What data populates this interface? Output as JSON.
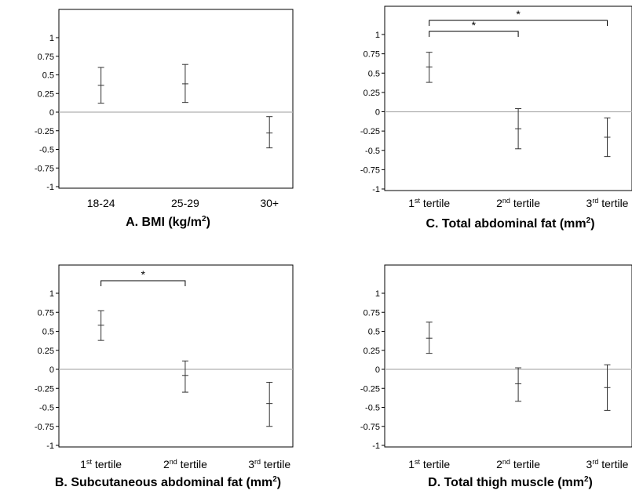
{
  "chart_data": [
    {
      "panel": "A",
      "type": "errorbar",
      "title": "A. BMI (kg/m",
      "title_sup": "2",
      "title_tail": ")",
      "ylim": [
        -1,
        1
      ],
      "yticks": [
        {
          "value": 1,
          "label": "1"
        },
        {
          "value": 0.75,
          "label": "0.75"
        },
        {
          "value": 0.5,
          "label": "0.5"
        },
        {
          "value": 0.25,
          "label": "0.25"
        },
        {
          "value": 0,
          "label": "0"
        },
        {
          "value": -0.25,
          "label": "-0.25"
        },
        {
          "value": -0.5,
          "label": "-0.5"
        },
        {
          "value": -0.75,
          "label": "-0.75"
        },
        {
          "value": -1,
          "label": "-1"
        }
      ],
      "categories": [
        {
          "main": "18-24",
          "sup": "",
          "tail": ""
        },
        {
          "main": "25-29",
          "sup": "",
          "tail": ""
        },
        {
          "main": "30+",
          "sup": "",
          "tail": ""
        }
      ],
      "points": [
        {
          "mean": 0.36,
          "low": 0.12,
          "high": 0.6
        },
        {
          "mean": 0.38,
          "low": 0.13,
          "high": 0.64
        },
        {
          "mean": -0.28,
          "low": -0.48,
          "high": -0.06
        }
      ],
      "significance": [],
      "grid": false,
      "zero_line": true
    },
    {
      "panel": "C",
      "type": "errorbar",
      "title": "C. Total abdominal fat (mm",
      "title_sup": "2",
      "title_tail": ")",
      "ylim": [
        -1,
        1
      ],
      "yticks": [
        {
          "value": 1,
          "label": "1"
        },
        {
          "value": 0.75,
          "label": "0.75"
        },
        {
          "value": 0.5,
          "label": "0.5"
        },
        {
          "value": 0.25,
          "label": "0.25"
        },
        {
          "value": 0,
          "label": "0"
        },
        {
          "value": -0.25,
          "label": "-0.25"
        },
        {
          "value": -0.5,
          "label": "-0.5"
        },
        {
          "value": -0.75,
          "label": "-0.75"
        },
        {
          "value": -1,
          "label": "-1"
        }
      ],
      "categories": [
        {
          "main": "1",
          "sup": "st",
          "tail": " tertile"
        },
        {
          "main": "2",
          "sup": "nd",
          "tail": " tertile"
        },
        {
          "main": "3",
          "sup": "rd",
          "tail": " tertile"
        }
      ],
      "points": [
        {
          "mean": 0.58,
          "low": 0.38,
          "high": 0.77
        },
        {
          "mean": -0.22,
          "low": -0.48,
          "high": 0.04
        },
        {
          "mean": -0.33,
          "low": -0.58,
          "high": -0.08
        }
      ],
      "significance": [
        {
          "from": 0,
          "to": 1,
          "symbol": "*"
        },
        {
          "from": 0,
          "to": 2,
          "symbol": "*"
        }
      ],
      "grid": false,
      "zero_line": true
    },
    {
      "panel": "B",
      "type": "errorbar",
      "title": "B. Subcutaneous abdominal fat (mm",
      "title_sup": "2",
      "title_tail": ")",
      "ylim": [
        -1,
        1
      ],
      "yticks": [
        {
          "value": 1,
          "label": "1"
        },
        {
          "value": 0.75,
          "label": "0.75"
        },
        {
          "value": 0.5,
          "label": "0.5"
        },
        {
          "value": 0.25,
          "label": "0.25"
        },
        {
          "value": 0,
          "label": "0"
        },
        {
          "value": -0.25,
          "label": "-0.25"
        },
        {
          "value": -0.5,
          "label": "-0.5"
        },
        {
          "value": -0.75,
          "label": "-0.75"
        },
        {
          "value": -1,
          "label": "-1"
        }
      ],
      "categories": [
        {
          "main": "1",
          "sup": "st",
          "tail": " tertile"
        },
        {
          "main": "2",
          "sup": "nd",
          "tail": " tertile"
        },
        {
          "main": "3",
          "sup": "rd",
          "tail": " tertile"
        }
      ],
      "points": [
        {
          "mean": 0.58,
          "low": 0.38,
          "high": 0.77
        },
        {
          "mean": -0.08,
          "low": -0.3,
          "high": 0.11
        },
        {
          "mean": -0.45,
          "low": -0.75,
          "high": -0.17
        }
      ],
      "significance": [
        {
          "from": 0,
          "to": 1,
          "symbol": "*"
        }
      ],
      "grid": false,
      "zero_line": true
    },
    {
      "panel": "D",
      "type": "errorbar",
      "title": "D. Total thigh muscle (mm",
      "title_sup": "2",
      "title_tail": ")",
      "ylim": [
        -1,
        1
      ],
      "yticks": [
        {
          "value": 1,
          "label": "1"
        },
        {
          "value": 0.75,
          "label": "0.75"
        },
        {
          "value": 0.5,
          "label": "0.5"
        },
        {
          "value": 0.25,
          "label": "0.25"
        },
        {
          "value": 0,
          "label": "0"
        },
        {
          "value": -0.25,
          "label": "-0.25"
        },
        {
          "value": -0.5,
          "label": "-0.5"
        },
        {
          "value": -0.75,
          "label": "-0.75"
        },
        {
          "value": -1,
          "label": "-1"
        }
      ],
      "categories": [
        {
          "main": "1",
          "sup": "st",
          "tail": " tertile"
        },
        {
          "main": "2",
          "sup": "nd",
          "tail": " tertile"
        },
        {
          "main": "3",
          "sup": "rd",
          "tail": " tertile"
        }
      ],
      "points": [
        {
          "mean": 0.41,
          "low": 0.21,
          "high": 0.62
        },
        {
          "mean": -0.19,
          "low": -0.42,
          "high": 0.02
        },
        {
          "mean": -0.24,
          "low": -0.54,
          "high": 0.06
        }
      ],
      "significance": [],
      "grid": false,
      "zero_line": true
    }
  ],
  "colors": {
    "axis": "#000000",
    "errorbar": "#333333",
    "zero_line": "#b0b0b0"
  }
}
